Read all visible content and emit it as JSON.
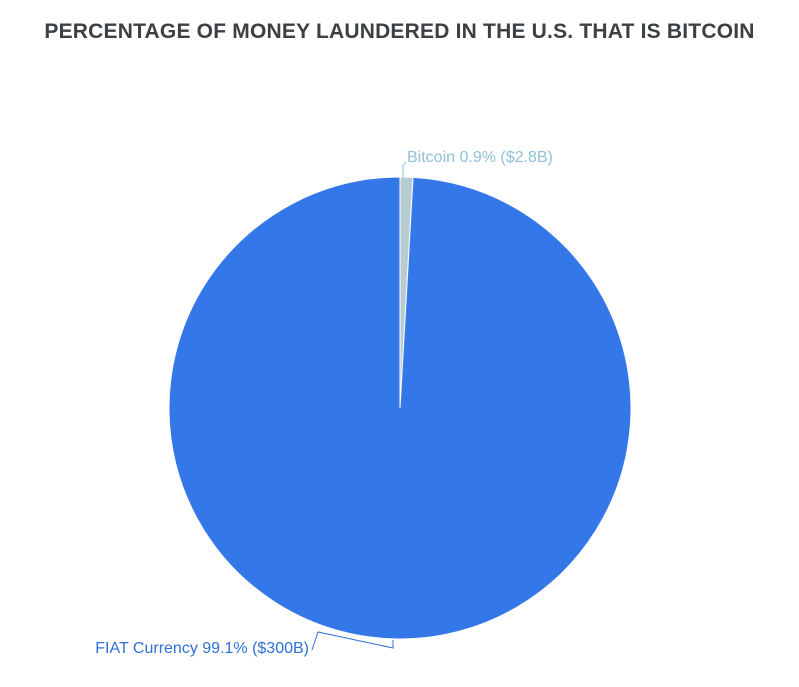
{
  "chart_data": {
    "type": "pie",
    "title": "PERCENTAGE OF MONEY LAUNDERED IN THE U.S. THAT IS BITCOIN",
    "slices": [
      {
        "name": "Bitcoin",
        "percent": 0.9,
        "value_label": "$2.8B",
        "label": "Bitcoin 0.9% ($2.8B)",
        "color": "#b7cbd2",
        "label_color": "#8fc1d6"
      },
      {
        "name": "FIAT Currency",
        "percent": 99.1,
        "value_label": "$300B",
        "label": "FIAT Currency 99.1% ($300B)",
        "color": "#3377e8",
        "label_color": "#2f6fd8"
      }
    ],
    "start_angle_deg": 0,
    "direction": "clockwise",
    "legend": "none",
    "background": "#ffffff"
  }
}
